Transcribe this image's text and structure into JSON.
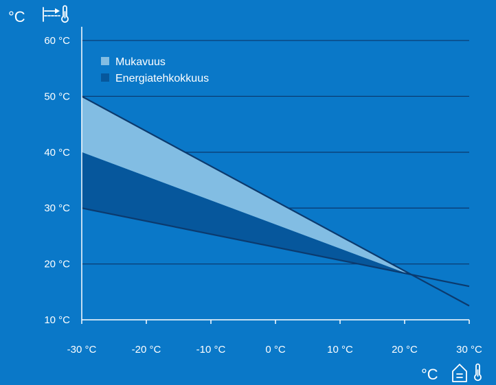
{
  "colors": {
    "background": "#0a78c8",
    "comfort_fill": "#82bde3",
    "efficiency_fill": "#06579c",
    "curve_line": "#0b3a6e",
    "grid": "#0a3d73",
    "axis": "#ffffff"
  },
  "icons": {
    "y_axis": "supply-water-thermometer-icon",
    "x_axis": "house-thermometer-icon"
  },
  "chart_data": {
    "type": "area",
    "title": "",
    "y_unit_label": "°C",
    "x_unit_label": "°C",
    "xlim": [
      -30,
      30
    ],
    "ylim": [
      10,
      60
    ],
    "x_ticks": [
      -30,
      -20,
      -10,
      0,
      10,
      20,
      30
    ],
    "y_ticks": [
      10,
      20,
      30,
      40,
      50,
      60
    ],
    "x_tick_labels": [
      "-30 °C",
      "-20 °C",
      "-10 °C",
      "0 °C",
      "10 °C",
      "20 °C",
      "30 °C"
    ],
    "y_tick_labels": [
      "10 °C",
      "20 °C",
      "30 °C",
      "40 °C",
      "50 °C",
      "60 °C"
    ],
    "grid": "horizontal",
    "legend_position": "top-left",
    "series": [
      {
        "name": "Mukavuus",
        "color": "#82bde3",
        "upper": [
          [
            -30,
            50
          ],
          [
            21,
            18
          ],
          [
            30,
            12.5
          ]
        ],
        "lower": [
          [
            -30,
            40
          ],
          [
            21,
            18
          ],
          [
            30,
            12.5
          ]
        ]
      },
      {
        "name": "Energiatehkokkuus",
        "color": "#06579c",
        "upper": [
          [
            -30,
            40
          ],
          [
            21,
            18
          ]
        ],
        "lower": [
          [
            -30,
            30
          ],
          [
            21,
            18
          ]
        ]
      }
    ],
    "lines": [
      {
        "points": [
          [
            -30,
            50
          ],
          [
            30,
            12.5
          ]
        ]
      },
      {
        "points": [
          [
            -30,
            30
          ],
          [
            30,
            16
          ]
        ]
      }
    ]
  }
}
